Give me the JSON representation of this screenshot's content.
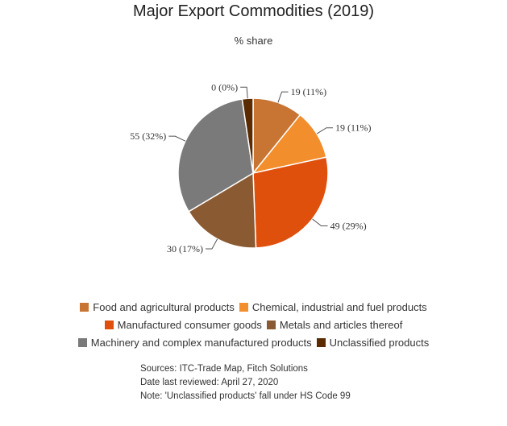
{
  "chart_data": {
    "type": "pie",
    "title": "Major Export Commodities (2019)",
    "subtitle": "% share",
    "slices": [
      {
        "name": "Food and agricultural products",
        "value": 19,
        "label": "19 (11%)",
        "color": "#c87533"
      },
      {
        "name": "Chemical, industrial and fuel products",
        "value": 19,
        "label": "19 (11%)",
        "color": "#f28e2b"
      },
      {
        "name": "Manufactured consumer goods",
        "value": 49,
        "label": "49 (29%)",
        "color": "#e0500d"
      },
      {
        "name": "Metals and articles thereof",
        "value": 30,
        "label": "30 (17%)",
        "color": "#8a5a33"
      },
      {
        "name": "Machinery and complex manufactured products",
        "value": 55,
        "label": "55 (32%)",
        "color": "#7a7a7a"
      },
      {
        "name": "Unclassified products",
        "value": 0,
        "label": "0 (0%)",
        "color": "#5a2a00"
      }
    ],
    "legend_position": "bottom"
  },
  "notes": [
    "Sources: ITC-Trade Map, Fitch Solutions",
    "Date last reviewed: April 27, 2020",
    "Note: 'Unclassified products' fall under HS Code 99"
  ]
}
